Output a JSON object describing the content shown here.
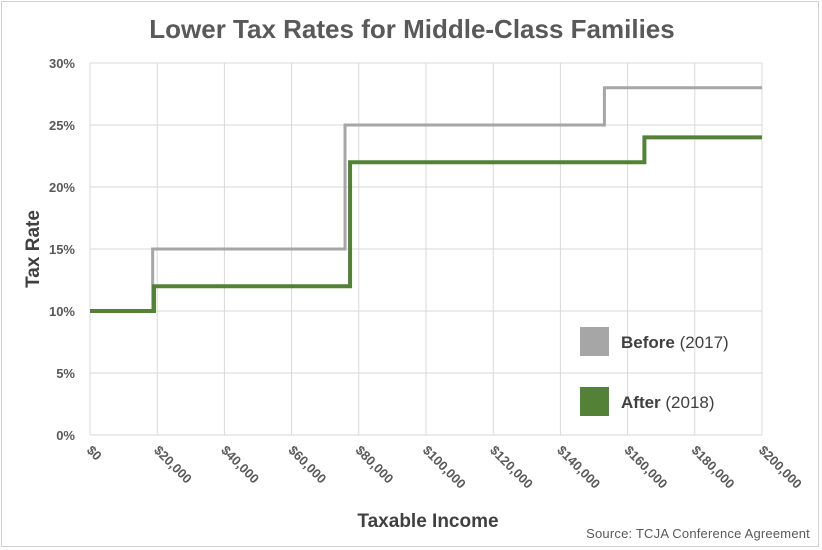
{
  "chart_data": {
    "type": "line",
    "title": "Lower Tax Rates for Middle-Class Families",
    "xlabel": "Taxable Income",
    "ylabel": "Tax Rate",
    "xlim": [
      0,
      200000
    ],
    "ylim": [
      0,
      30
    ],
    "x_ticks": [
      "$0",
      "$20,000",
      "$40,000",
      "$60,000",
      "$80,000",
      "$100,000",
      "$120,000",
      "$140,000",
      "$160,000",
      "$180,000",
      "$200,000"
    ],
    "y_ticks": [
      "0%",
      "5%",
      "10%",
      "15%",
      "20%",
      "25%",
      "30%"
    ],
    "grid": true,
    "legend_position": "bottom-right",
    "series": [
      {
        "name_bold": "Before",
        "name_year": "(2017)",
        "color": "#a6a6a6",
        "step": "post",
        "points": [
          [
            0,
            10
          ],
          [
            18650,
            15
          ],
          [
            75900,
            25
          ],
          [
            153100,
            28
          ],
          [
            200000,
            28
          ]
        ]
      },
      {
        "name_bold": "After",
        "name_year": "(2018)",
        "color": "#538135",
        "step": "post",
        "points": [
          [
            0,
            10
          ],
          [
            19050,
            12
          ],
          [
            77400,
            22
          ],
          [
            165000,
            24
          ],
          [
            200000,
            24
          ]
        ]
      }
    ],
    "source": "Source:  TCJA  Conference  Agreement"
  }
}
